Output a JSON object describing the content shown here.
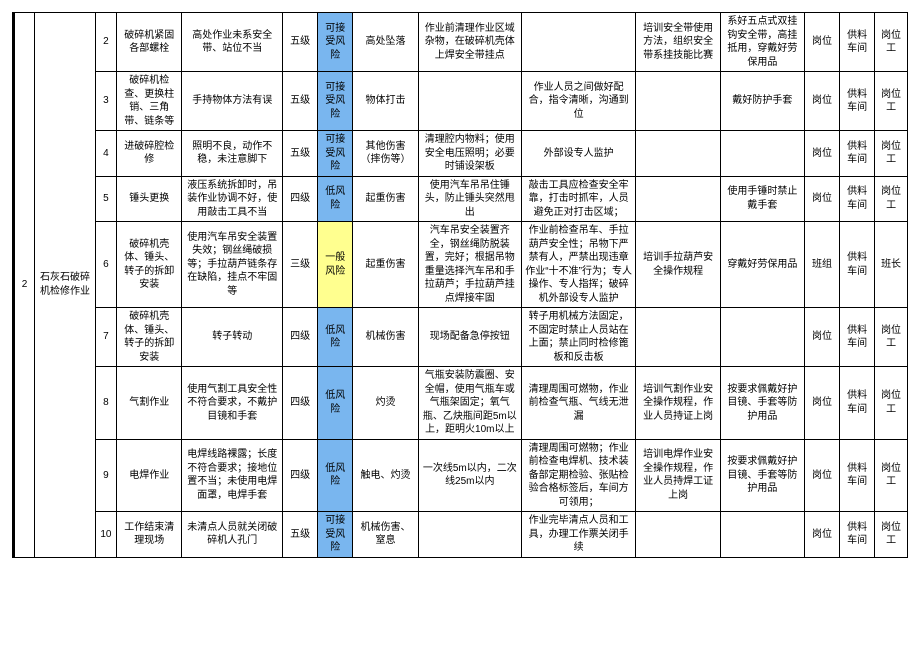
{
  "section": {
    "index": "2",
    "title": "石灰石破碎机检修作业"
  },
  "risk_colors": {
    "acceptable": "#79b6ef",
    "low": "#79b6ef",
    "general": "#ffff8f"
  },
  "rows": [
    {
      "n": "2",
      "step": "破碎机紧固各部螺栓",
      "hazard": "高处作业未系安全带、站位不当",
      "level": "五级",
      "risk": "可接受风险",
      "risk_class": "risk-blue",
      "accident": "高处坠落",
      "eng": "作业前清理作业区域杂物，在破碎机壳体上焊安全带挂点",
      "mgmt1": "",
      "mgmt2": "培训安全带使用方法，组织安全带系挂技能比赛",
      "ppe": "系好五点式双挂钩安全带，高挂抵用，穿戴好劳保用品",
      "post": "岗位",
      "dept": "供料车间",
      "resp": "岗位工"
    },
    {
      "n": "3",
      "step": "破碎机检查、更换柱销、三角带、链条等",
      "hazard": "手持物体方法有误",
      "level": "五级",
      "risk": "可接受风险",
      "risk_class": "risk-blue",
      "accident": "物体打击",
      "eng": "",
      "mgmt1": "作业人员之间做好配合，指令清晰，沟通到位",
      "mgmt2": "",
      "ppe": "戴好防护手套",
      "post": "岗位",
      "dept": "供料车间",
      "resp": "岗位工"
    },
    {
      "n": "4",
      "step": "进破碎腔检修",
      "hazard": "照明不良，动作不稳，未注意脚下",
      "level": "五级",
      "risk": "可接受风险",
      "risk_class": "risk-blue",
      "accident": "其他伤害（摔伤等）",
      "eng": "清理腔内物料；使用安全电压照明；必要时铺设架板",
      "mgmt1": "外部设专人监护",
      "mgmt2": "",
      "ppe": "",
      "post": "岗位",
      "dept": "供料车间",
      "resp": "岗位工"
    },
    {
      "n": "5",
      "step": "锤头更换",
      "hazard": "液压系统拆卸时，吊装作业协调不好，使用敲击工具不当",
      "level": "四级",
      "risk": "低风险",
      "risk_class": "risk-blue",
      "accident": "起重伤害",
      "eng": "使用汽车吊吊住锤头，防止锤头突然甩出",
      "mgmt1": "敲击工具应检查安全牢靠，打击时抓牢，人员避免正对打击区域；",
      "mgmt2": "",
      "ppe": "使用手锤时禁止戴手套",
      "post": "岗位",
      "dept": "供料车间",
      "resp": "岗位工"
    },
    {
      "n": "6",
      "step": "破碎机壳体、锤头、转子的拆卸安装",
      "hazard": "使用汽车吊安全装置失效；钢丝绳破损等；手拉葫芦链条存在缺陷，挂点不牢固等",
      "level": "三级",
      "risk": "一般风险",
      "risk_class": "risk-yellow",
      "accident": "起重伤害",
      "eng": "汽车吊安全装置齐全，钢丝绳防脱装置，完好；根据吊物重量选择汽车吊和手拉葫芦；手拉葫芦挂点焊接牢固",
      "mgmt1": "作业前检查吊车、手拉葫芦安全性；吊物下严禁有人，严禁出现违章作业“十不准”行为；专人操作、专人指挥；破碎机外部设专人监护",
      "mgmt2": "培训手拉葫芦安全操作规程",
      "ppe": "穿戴好劳保用品",
      "post": "班组",
      "dept": "供料车间",
      "resp": "班长"
    },
    {
      "n": "7",
      "step": "破碎机壳体、锤头、转子的拆卸安装",
      "hazard": "转子转动",
      "level": "四级",
      "risk": "低风险",
      "risk_class": "risk-blue",
      "accident": "机械伤害",
      "eng": "现场配备急停按钮",
      "mgmt1": "转子用机械方法固定，不固定时禁止人员站在上面；禁止同时检修篦板和反击板",
      "mgmt2": "",
      "ppe": "",
      "post": "岗位",
      "dept": "供料车间",
      "resp": "岗位工"
    },
    {
      "n": "8",
      "step": "气割作业",
      "hazard": "使用气割工具安全性不符合要求，不戴护目镜和手套",
      "level": "四级",
      "risk": "低风险",
      "risk_class": "risk-blue",
      "accident": "灼烫",
      "eng": "气瓶安装防震圈、安全帽，使用气瓶车或气瓶架固定；氧气瓶、乙炔瓶间距5m以上，距明火10m以上",
      "mgmt1": "清理周围可燃物，作业前检查气瓶、气线无泄漏",
      "mgmt2": "培训气割作业安全操作规程，作业人员持证上岗",
      "ppe": "按要求佩戴好护目镜、手套等防护用品",
      "post": "岗位",
      "dept": "供料车间",
      "resp": "岗位工"
    },
    {
      "n": "9",
      "step": "电焊作业",
      "hazard": "电焊线路裸露；长度不符合要求；接地位置不当；未使用电焊面罩，电焊手套",
      "level": "四级",
      "risk": "低风险",
      "risk_class": "risk-blue",
      "accident": "触电、灼烫",
      "eng": "一次线5m以内，二次线25m以内",
      "mgmt1": "清理周围可燃物；作业前检查电焊机、技术装备部定期检验、张贴检验合格标签后，车间方可领用；",
      "mgmt2": "培训电焊作业安全操作规程，作业人员持焊工证上岗",
      "ppe": "按要求佩戴好护目镜、手套等防护用品",
      "post": "岗位",
      "dept": "供料车间",
      "resp": "岗位工"
    },
    {
      "n": "10",
      "step": "工作结束清理现场",
      "hazard": "未清点人员就关闭破碎机人孔门",
      "level": "五级",
      "risk": "可接受风险",
      "risk_class": "risk-blue",
      "accident": "机械伤害、窒息",
      "eng": "",
      "mgmt1": "作业完毕清点人员和工具，办理工作票关闭手续",
      "mgmt2": "",
      "ppe": "",
      "post": "岗位",
      "dept": "供料车间",
      "resp": "岗位工"
    }
  ]
}
